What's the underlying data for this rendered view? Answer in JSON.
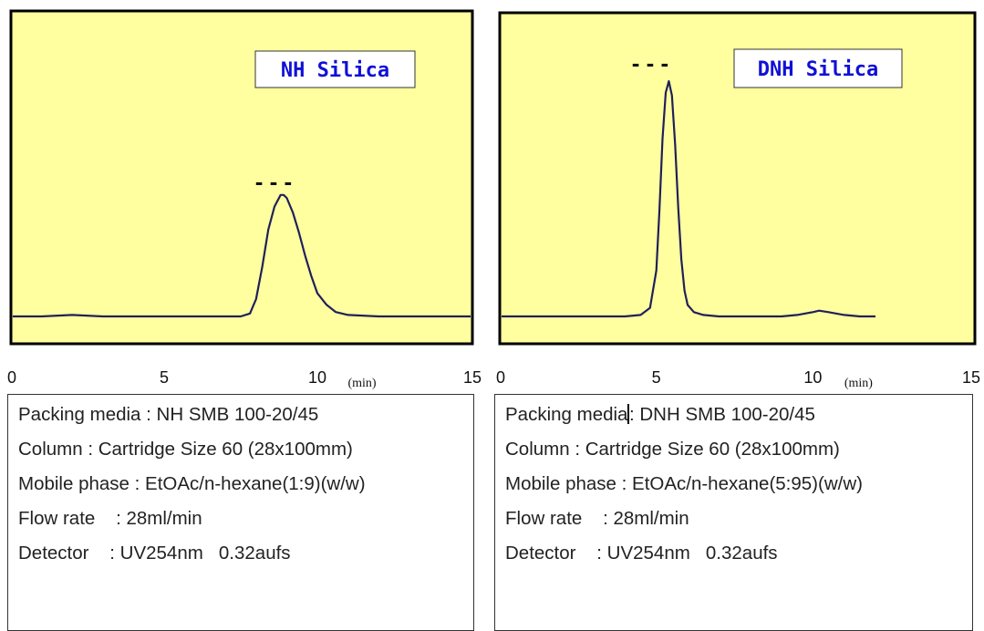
{
  "colors": {
    "plot_bg": "#ffffa0",
    "trace": "#20205a",
    "legend_text": "#1010d8",
    "frame": "#000000"
  },
  "chart_data": [
    {
      "type": "line",
      "title": "NH Silica",
      "xlabel": "(min)",
      "xlim": [
        0,
        15
      ],
      "ylim": [
        0,
        1
      ],
      "xticks": [
        "0",
        "5",
        "10",
        "15"
      ],
      "series": [
        {
          "x": [
            0,
            1,
            2,
            3,
            4,
            5,
            6,
            7,
            7.5,
            7.8,
            8.0,
            8.2,
            8.4,
            8.6,
            8.8,
            8.9,
            9.0,
            9.2,
            9.4,
            9.6,
            9.8,
            10.0,
            10.3,
            10.6,
            11,
            12,
            13,
            14,
            15
          ],
          "y": [
            0.08,
            0.08,
            0.085,
            0.08,
            0.08,
            0.08,
            0.08,
            0.08,
            0.08,
            0.09,
            0.14,
            0.25,
            0.38,
            0.46,
            0.5,
            0.5,
            0.49,
            0.44,
            0.37,
            0.29,
            0.22,
            0.16,
            0.12,
            0.095,
            0.085,
            0.08,
            0.08,
            0.08,
            0.08
          ]
        }
      ],
      "annotations": [
        {
          "label": "- - -"
        }
      ]
    },
    {
      "type": "line",
      "title": "DNH Silica",
      "xlabel": "(min)",
      "xlim": [
        0,
        15
      ],
      "ylim": [
        0,
        1
      ],
      "xticks": [
        "0",
        "5",
        "10",
        "15"
      ],
      "series": [
        {
          "x": [
            0,
            1,
            2,
            3,
            4,
            4.5,
            4.8,
            5.0,
            5.1,
            5.2,
            5.3,
            5.4,
            5.5,
            5.6,
            5.7,
            5.8,
            5.9,
            6.0,
            6.2,
            6.5,
            7,
            8,
            9,
            9.5,
            10,
            10.2,
            10.5,
            11,
            11.5,
            12
          ],
          "y": [
            0.08,
            0.08,
            0.08,
            0.08,
            0.08,
            0.085,
            0.11,
            0.24,
            0.45,
            0.7,
            0.86,
            0.9,
            0.85,
            0.68,
            0.46,
            0.28,
            0.17,
            0.12,
            0.095,
            0.085,
            0.08,
            0.08,
            0.08,
            0.085,
            0.095,
            0.1,
            0.095,
            0.085,
            0.08,
            0.08
          ]
        }
      ],
      "annotations": [
        {
          "label": "- - -"
        }
      ]
    }
  ],
  "info": [
    {
      "lines": [
        "Packing media : NH SMB 100-20/45",
        "Column : Cartridge Size 60 (28x100mm)",
        "Mobile phase : EtOAc/n-hexane(1:9)(w/w)",
        "Flow rate    : 28ml/min",
        "Detector    : UV254nm   0.32aufs"
      ]
    },
    {
      "lines": [
        "Packing media",
        ": DNH SMB 100-20/45",
        "Column : Cartridge Size 60 (28x100mm)",
        "Mobile phase : EtOAc/n-hexane(5:95)(w/w)",
        "Flow rate    : 28ml/min",
        "Detector    : UV254nm   0.32aufs"
      ]
    }
  ]
}
